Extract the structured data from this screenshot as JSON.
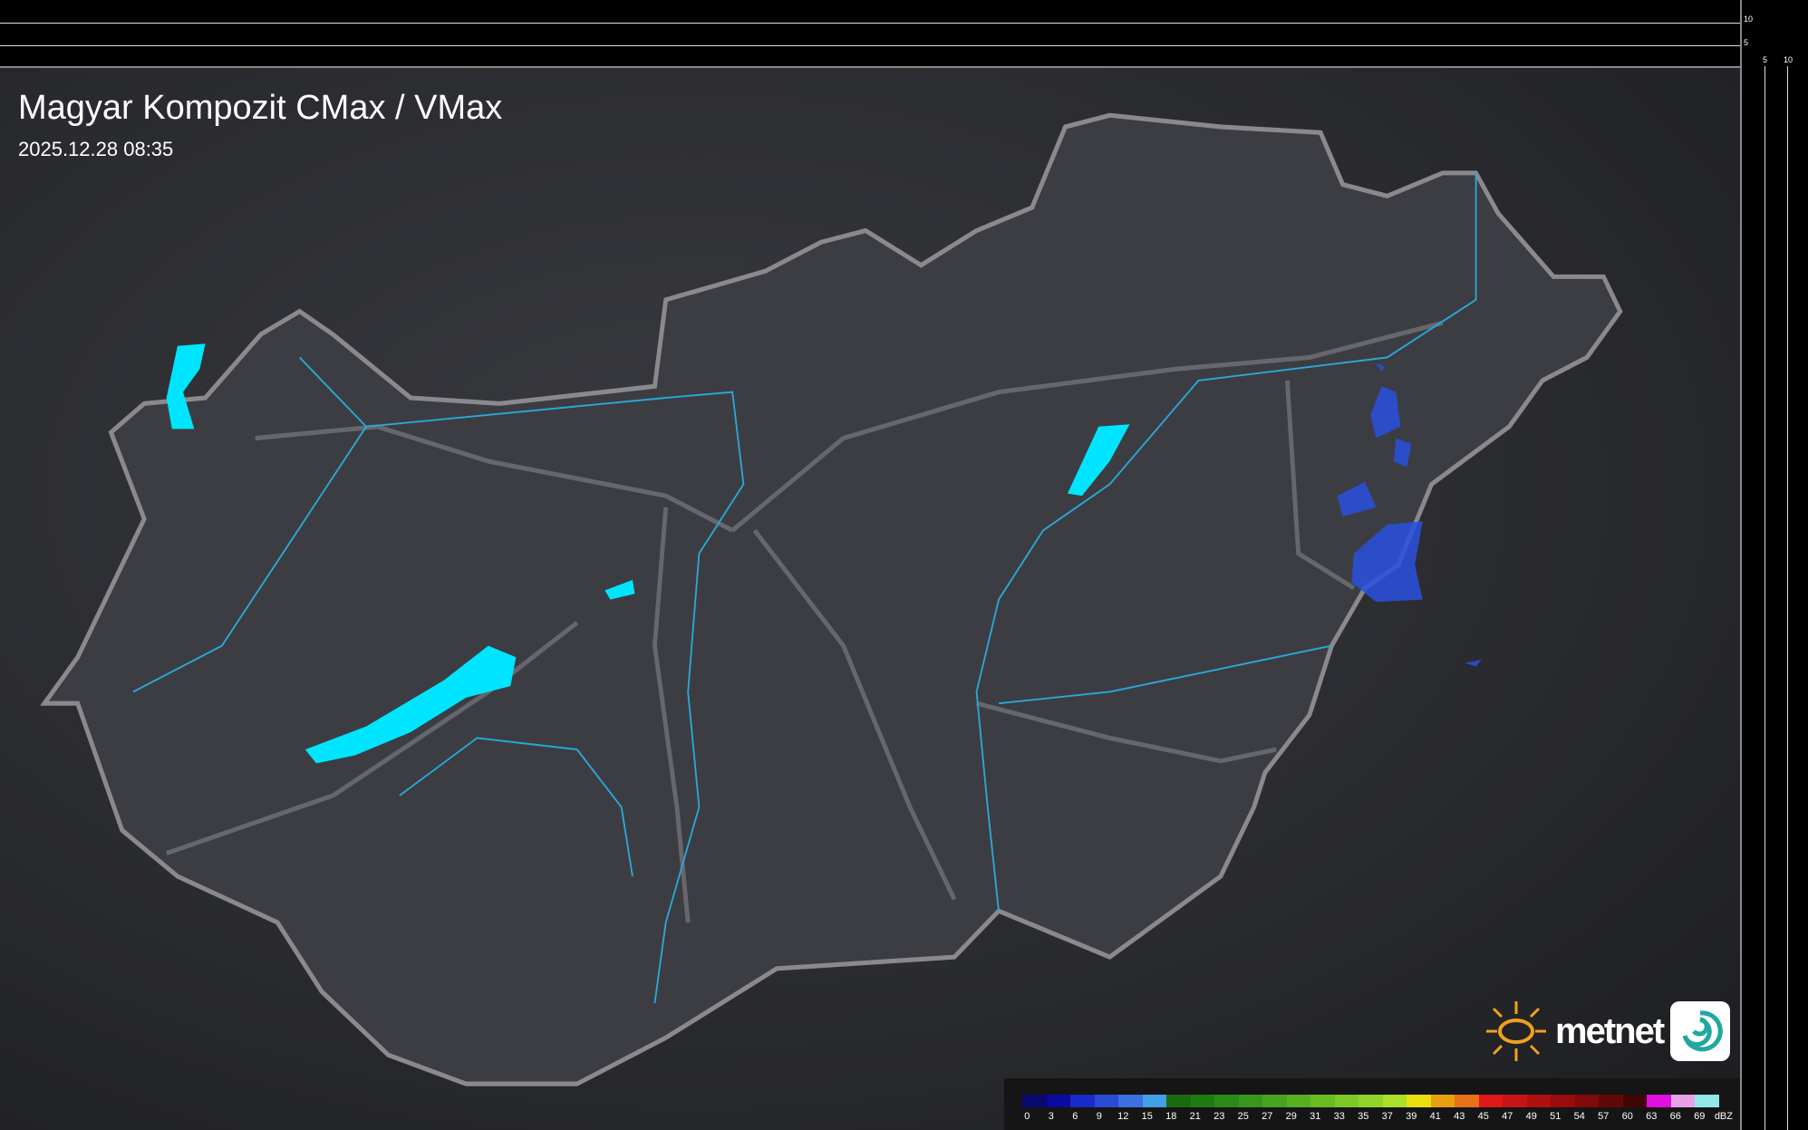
{
  "header": {
    "title": "Magyar Kompozit CMax / VMax",
    "datetime": "2025.12.28 08:35"
  },
  "scale": {
    "top_ticks": [
      "10",
      "5"
    ],
    "right_ticks": [
      "5",
      "10"
    ]
  },
  "logo": {
    "text": "metnet"
  },
  "legend": {
    "unit": "dBZ",
    "labels": [
      "0",
      "3",
      "6",
      "9",
      "12",
      "15",
      "18",
      "21",
      "23",
      "25",
      "27",
      "29",
      "31",
      "33",
      "35",
      "37",
      "39",
      "41",
      "43",
      "45",
      "47",
      "49",
      "51",
      "54",
      "57",
      "60",
      "63",
      "66",
      "69"
    ],
    "colors": [
      "#0a0a6e",
      "#0a0aa0",
      "#1a2ac8",
      "#2a4ad8",
      "#3a70e0",
      "#40a0e8",
      "#1a6a10",
      "#207a12",
      "#2a8a18",
      "#38961c",
      "#48a41e",
      "#58b020",
      "#68bc22",
      "#7cc826",
      "#90d428",
      "#a8e02a",
      "#e8e010",
      "#e8a010",
      "#e87018",
      "#e01818",
      "#c81414",
      "#b01010",
      "#980c0c",
      "#800a0a",
      "#600808",
      "#400606",
      "#e010e0",
      "#e8a0e8",
      "#90e8e8"
    ],
    "map_colors": {
      "water": "#00e5ff",
      "border": "#8a8a8e",
      "rivers": "#2aa8d8",
      "country_fill": "#3a3b40",
      "echo": "#2a50e0"
    }
  }
}
